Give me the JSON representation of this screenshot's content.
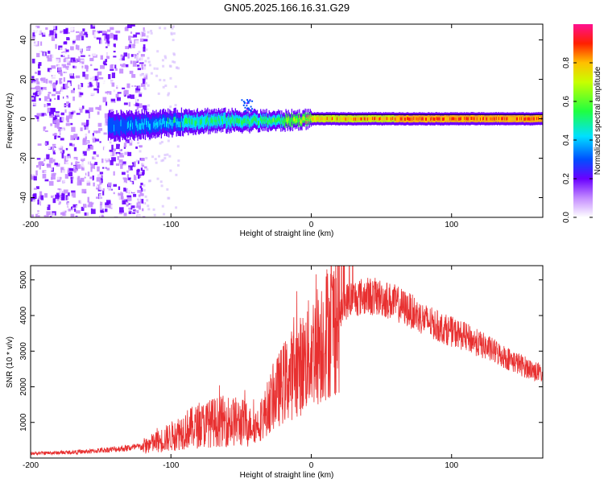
{
  "title": "GN05.2025.166.16.31.G29",
  "chart_data": [
    {
      "type": "heatmap",
      "xlabel": "Height of straight line (km)",
      "ylabel": "Frequency (Hz)",
      "xlim": [
        -200,
        165
      ],
      "ylim": [
        -50,
        48
      ],
      "xticks": [
        "-200",
        "-100",
        "0",
        "100"
      ],
      "xtick_values": [
        -200,
        -100,
        0,
        100
      ],
      "yticks": [
        "-40",
        "-20",
        "0",
        "20",
        "40"
      ],
      "ytick_values": [
        -40,
        -20,
        0,
        20,
        40
      ],
      "colorbar": {
        "label": "Normalized spectral amplitude",
        "range": [
          0,
          1
        ],
        "ticks": [
          "0.0",
          "0.2",
          "0.4",
          "0.6",
          "0.8"
        ],
        "tick_values": [
          0,
          0.2,
          0.4,
          0.6,
          0.8
        ]
      },
      "ridge": {
        "x": [
          -145,
          -120,
          -100,
          -80,
          -60,
          -40,
          -20,
          0,
          20,
          60,
          100,
          165
        ],
        "frequency": [
          -4,
          -3,
          -2,
          -1,
          -1,
          -1,
          -1,
          0,
          0,
          0,
          0,
          0
        ],
        "amplitude": [
          0.35,
          0.45,
          0.5,
          0.55,
          0.55,
          0.6,
          0.65,
          0.8,
          0.85,
          0.9,
          0.9,
          0.9
        ]
      },
      "noise_region_x": [
        -200,
        -125
      ]
    },
    {
      "type": "line",
      "xlabel": "Height of straight line (km)",
      "ylabel": "SNR (10 * v/v)",
      "xlim": [
        -200,
        165
      ],
      "ylim": [
        0,
        5400
      ],
      "xticks": [
        "-200",
        "-100",
        "0",
        "100"
      ],
      "xtick_values": [
        -200,
        -100,
        0,
        100
      ],
      "yticks": [
        "1000",
        "2000",
        "3000",
        "4000",
        "5000"
      ],
      "ytick_values": [
        1000,
        2000,
        3000,
        4000,
        5000
      ],
      "color": "#e83030",
      "series": [
        {
          "x": [
            -200,
            -180,
            -160,
            -140,
            -120,
            -110,
            -100,
            -90,
            -80,
            -70,
            -60,
            -50,
            -40,
            -35,
            -30,
            -25,
            -20,
            -15,
            -10,
            -5,
            0,
            5,
            10,
            15,
            20,
            25,
            30,
            40,
            50,
            60,
            70,
            80,
            90,
            100,
            110,
            120,
            130,
            140,
            150,
            165
          ],
          "y": [
            130,
            150,
            180,
            250,
            320,
            450,
            600,
            800,
            900,
            1000,
            1050,
            1000,
            900,
            1100,
            1500,
            1800,
            2100,
            2300,
            2500,
            2700,
            3000,
            3200,
            3500,
            3700,
            4000,
            4400,
            4500,
            4550,
            4500,
            4350,
            4150,
            3900,
            3700,
            3550,
            3400,
            3200,
            3000,
            2800,
            2600,
            2350
          ]
        }
      ]
    }
  ]
}
